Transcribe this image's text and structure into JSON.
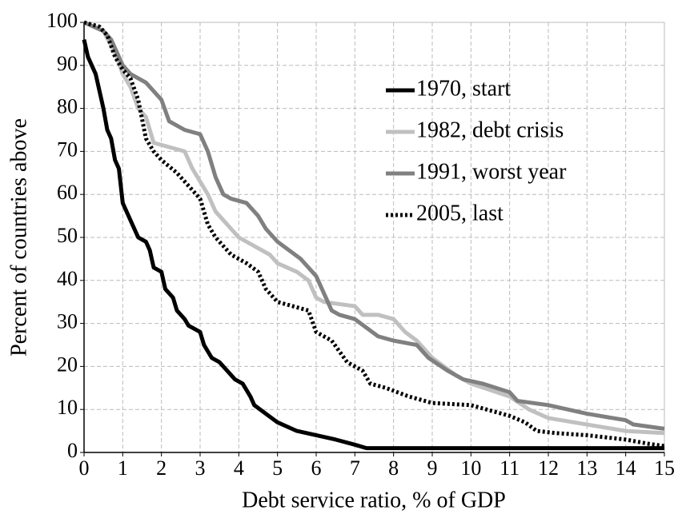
{
  "chart_data": {
    "type": "line",
    "xlabel": "Debt service ratio, % of GDP",
    "ylabel": "Percent of countries above",
    "xlim": [
      0,
      15
    ],
    "ylim": [
      0,
      100
    ],
    "xticks": [
      0,
      1,
      2,
      3,
      4,
      5,
      6,
      7,
      8,
      9,
      10,
      11,
      12,
      13,
      14,
      15
    ],
    "yticks": [
      0,
      10,
      20,
      30,
      40,
      50,
      60,
      70,
      80,
      90,
      100
    ],
    "grid": true,
    "legend": "upper right",
    "series": [
      {
        "name": "1970, start",
        "color": "#000000",
        "line_style": "solid",
        "x": [
          0,
          0.1,
          0.3,
          0.5,
          0.6,
          0.7,
          0.8,
          0.9,
          1,
          1.1,
          1.2,
          1.4,
          1.6,
          1.7,
          1.8,
          2,
          2.1,
          2.3,
          2.4,
          2.6,
          2.7,
          3,
          3.1,
          3.3,
          3.5,
          3.7,
          3.9,
          4.1,
          4.3,
          4.4,
          4.7,
          5,
          5.5,
          6,
          6.5,
          7,
          7.3,
          8,
          10,
          15
        ],
        "values": [
          96,
          92,
          88,
          80,
          75,
          73,
          68,
          66,
          58,
          56,
          54,
          50,
          49,
          47,
          43,
          42,
          38,
          36,
          33,
          31,
          29.5,
          28,
          25,
          22,
          21,
          19,
          17,
          16,
          13,
          11,
          9,
          7,
          5,
          4,
          3,
          1.8,
          1,
          1,
          1,
          1
        ]
      },
      {
        "name": "1982, debt crisis",
        "color": "#c0c0c0",
        "line_style": "solid",
        "x": [
          0,
          0.5,
          0.8,
          1,
          1.2,
          1.4,
          1.6,
          1.7,
          1.8,
          2.2,
          2.6,
          2.8,
          3,
          3.2,
          3.4,
          3.6,
          3.8,
          4,
          4.4,
          4.8,
          5,
          5.5,
          5.8,
          6,
          6.2,
          7,
          7.2,
          7.6,
          8,
          8.3,
          8.6,
          9,
          9.6,
          10,
          11,
          11.5,
          12,
          13,
          14,
          15
        ],
        "values": [
          100,
          98,
          93,
          88,
          85,
          80,
          78,
          75,
          72,
          71,
          70,
          66,
          63,
          60,
          56,
          54,
          52,
          50,
          48,
          46,
          44,
          42,
          40,
          36,
          35,
          34,
          32,
          32,
          31,
          28,
          26,
          22,
          18,
          16,
          13,
          10,
          8,
          6.5,
          5,
          4.5
        ]
      },
      {
        "name": "1991, worst year",
        "color": "#808080",
        "line_style": "solid",
        "x": [
          0,
          0.5,
          0.7,
          0.9,
          1,
          1.2,
          1.6,
          2,
          2.2,
          2.4,
          2.6,
          3,
          3.2,
          3.4,
          3.6,
          3.8,
          4.2,
          4.5,
          4.7,
          5,
          5.3,
          5.6,
          5.8,
          6,
          6.2,
          6.4,
          6.6,
          7,
          7.3,
          7.6,
          8,
          8.6,
          8.9,
          9.4,
          9.8,
          10.3,
          11,
          11.2,
          12,
          13,
          14,
          14.2,
          15
        ],
        "values": [
          100,
          98,
          96,
          92,
          90,
          88,
          86,
          82,
          77,
          76,
          75,
          74,
          70,
          64,
          60,
          59,
          58,
          55,
          52,
          49,
          47,
          45,
          43,
          41,
          37,
          33,
          32,
          31,
          29,
          27,
          26,
          25,
          22,
          19,
          17,
          16,
          14,
          12,
          11,
          9,
          7.5,
          6.5,
          5.5
        ]
      },
      {
        "name": "2005, last",
        "color": "#000000",
        "line_style": "dotted",
        "x": [
          0,
          0.4,
          0.6,
          0.8,
          1,
          1.2,
          1.4,
          1.6,
          1.8,
          2,
          2.4,
          2.8,
          3,
          3.2,
          3.4,
          3.6,
          3.8,
          4.2,
          4.5,
          4.7,
          5,
          5.4,
          5.8,
          6,
          6.4,
          6.8,
          7.2,
          7.4,
          7.8,
          8.4,
          9,
          10,
          10.4,
          11,
          11.4,
          11.7,
          12.2,
          13,
          14,
          14.6,
          15
        ],
        "values": [
          100,
          99,
          97,
          92,
          89,
          87,
          82,
          73,
          70,
          68,
          65,
          61,
          59,
          53,
          50,
          48,
          46,
          44,
          42,
          38,
          35,
          34,
          33,
          28,
          26,
          21,
          19,
          16,
          15,
          13,
          11.5,
          11,
          10,
          8.5,
          7,
          5,
          4.5,
          4,
          3,
          2,
          1.5
        ]
      }
    ]
  }
}
